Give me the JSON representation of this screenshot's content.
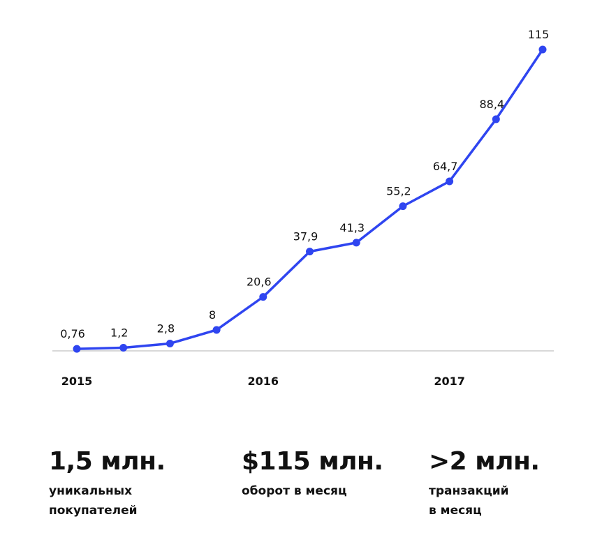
{
  "chart_data": {
    "type": "line",
    "title": "",
    "xlabel": "",
    "ylabel": "",
    "x_tick_labels": [
      "2015",
      "2016",
      "2017"
    ],
    "series": [
      {
        "values": [
          0.76,
          1.2,
          2.8,
          8,
          20.6,
          37.9,
          41.3,
          55.2,
          64.7,
          88.4,
          115
        ],
        "data_labels": [
          "0,76",
          "1,2",
          "2,8",
          "8",
          "20,6",
          "37,9",
          "41,3",
          "55,2",
          "64,7",
          "88,4",
          "115"
        ]
      }
    ],
    "ylim": [
      0,
      115
    ],
    "grid": false,
    "legend": "none",
    "line_color": "#2f45f0",
    "baseline_color": "#cccccc",
    "label_color": "#111111"
  },
  "stats": [
    {
      "value": "1,5 млн.",
      "description": "уникальных\nпокупателей"
    },
    {
      "value": "$115 млн.",
      "description": "оборот в месяц"
    },
    {
      "value": ">2 млн.",
      "description": "транзакций\nв месяц"
    }
  ]
}
